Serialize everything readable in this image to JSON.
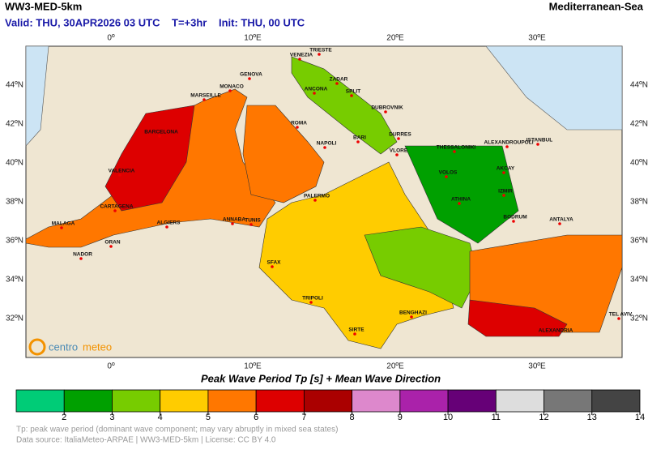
{
  "header": {
    "title": "WW3-MED-5km",
    "region": "Mediterranean-Sea",
    "valid": "Valid: THU, 30APR2026 03 UTC",
    "step": "T=+3hr",
    "init": "Init: THU, 00 UTC"
  },
  "map": {
    "lon_labels": [
      "0º",
      "10ºE",
      "20ºE",
      "30ºE"
    ],
    "lat_labels": [
      "44ºN",
      "42ºN",
      "40ºN",
      "38ºN",
      "36ºN",
      "34ºN",
      "32ºN"
    ],
    "cities": [
      "VENEZIA",
      "TRIESTE",
      "GENOVA",
      "MONACO",
      "MARSEILLE",
      "ZADAR",
      "ANCONA",
      "SPLIT",
      "DUBROVNIK",
      "ROMA",
      "BARCELONA",
      "DURRES",
      "BARI",
      "NAPOLI",
      "VLORE",
      "THESSALONIKI",
      "ALEXANDROUPOLI",
      "ISTANBUL",
      "VALENCIA",
      "AKCAY",
      "VOLOS",
      "IZMIR",
      "PALERMO",
      "ATHINA",
      "CARTAGENA",
      "ANNABA",
      "TUNIS",
      "ALGIERS",
      "BODRUM",
      "ANTALYA",
      "MALAGA",
      "ORAN",
      "NADOR",
      "SFAX",
      "TRIPOLI",
      "BENGHAZI",
      "TEL AVIV",
      "SIRTE",
      "ALEXANDRIA"
    ],
    "logo": [
      "centro",
      "meteo"
    ]
  },
  "legend": {
    "title": "Peak Wave Period Tp [s]  +  Mean Wave Direction",
    "ticks": [
      2,
      3,
      4,
      5,
      6,
      7,
      8,
      9,
      10,
      11,
      12,
      13,
      14
    ],
    "colors": [
      "#00cc77",
      "#00a000",
      "#77cc00",
      "#ffcc00",
      "#ff7700",
      "#dd0000",
      "#aa0000",
      "#dd88cc",
      "#aa22aa",
      "#660077",
      "#dddddd",
      "#777777",
      "#444444"
    ]
  },
  "footer": {
    "note": "Tp: peak wave period (dominant wave component; may vary abruptly in mixed sea states)",
    "source": "Data source: ItaliaMeteo-ARPAE | WW3-MED-5km | License: CC BY 4.0"
  }
}
